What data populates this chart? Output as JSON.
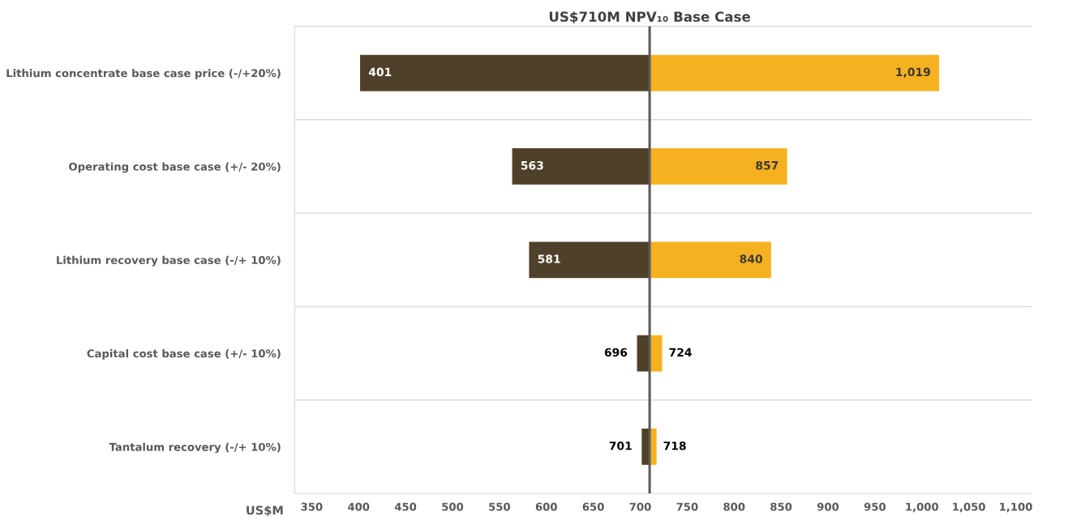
{
  "chart_data": {
    "type": "bar",
    "orientation": "horizontal",
    "categories": [
      "Lithium concentrate base case price (-/+20%)",
      "Operating cost base case (+/- 20%)",
      "Lithium recovery base case (-/+ 10%)",
      "Capital cost base case (+/- 10%)",
      "Tantalum recovery (-/+ 10%)"
    ],
    "series": [
      {
        "color": "#4f4129",
        "base": [
          401,
          563,
          581,
          696,
          701
        ],
        "values": [
          309,
          147,
          129,
          14,
          9
        ]
      },
      {
        "color": "#f5b120",
        "base": [
          710,
          710,
          710,
          710,
          710
        ],
        "values": [
          309,
          147,
          130,
          14,
          8
        ]
      }
    ],
    "annotations": [
      {
        "text": "401",
        "x": 401,
        "y": "Lithium concentrate base case price (-/+20%)"
      },
      {
        "text": "563",
        "x": 563,
        "y": "Operating cost base case (+/- 20%)"
      },
      {
        "text": "581",
        "x": 581,
        "y": "Lithium recovery base case (-/+ 10%)"
      },
      {
        "text": "696",
        "x": 696,
        "y": "Capital cost base case (+/- 10%)"
      },
      {
        "text": "701",
        "x": 701,
        "y": "Tantalum recovery (-/+ 10%)"
      },
      {
        "text": "1,019",
        "x": 1019,
        "y": "Lithium concentrate base case price (-/+20%)"
      },
      {
        "text": "857",
        "x": 857,
        "y": "Operating cost base case (+/- 20%)"
      },
      {
        "text": "840",
        "x": 840,
        "y": "Lithium recovery base case (-/+ 10%)"
      },
      {
        "text": "724",
        "x": 724,
        "y": "Capital cost base case (+/- 10%)"
      },
      {
        "text": "718",
        "x": 718,
        "y": "Tantalum recovery (-/+ 10%)"
      }
    ],
    "xlabel": "US$M",
    "xlim": [
      332,
      1117
    ],
    "xticks": [
      350,
      400,
      450,
      500,
      550,
      600,
      650,
      700,
      750,
      800,
      850,
      900,
      950,
      {
        "value": 1000,
        "label": "1,000"
      },
      {
        "value": 1050,
        "label": "1,050"
      },
      {
        "value": 1100,
        "label": "1,100"
      }
    ],
    "ref_lines": [
      {
        "axis": "x",
        "value": 710,
        "label": "US$710M NPV₁₀ Base Case",
        "color": "#595959"
      }
    ],
    "grid": "y",
    "legend": false
  }
}
